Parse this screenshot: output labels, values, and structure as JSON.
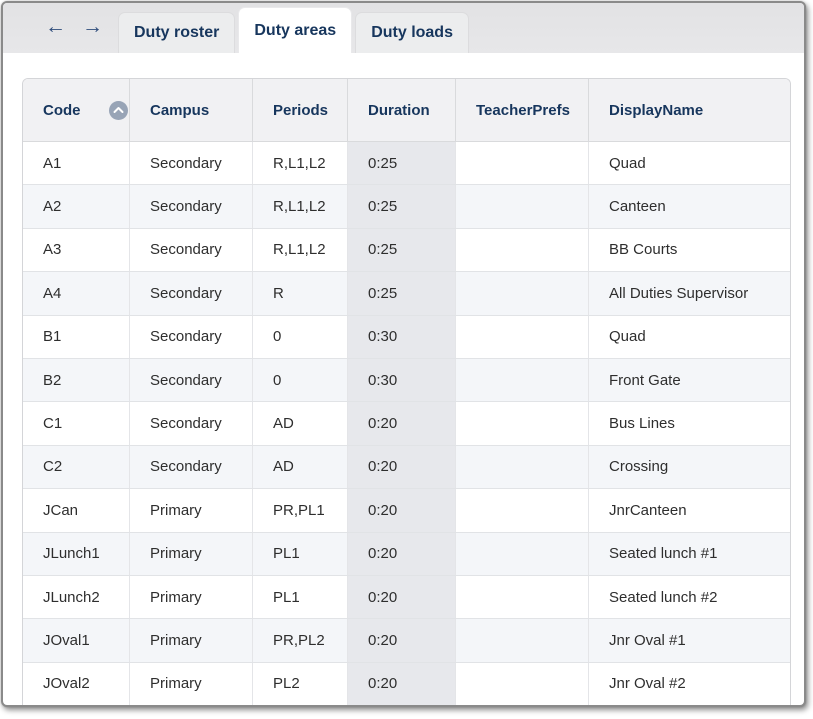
{
  "window": {
    "nav": {
      "back_icon": "←",
      "forward_icon": "→"
    },
    "tabs": [
      {
        "label": "Duty roster",
        "active": false
      },
      {
        "label": "Duty areas",
        "active": true
      },
      {
        "label": "Duty loads",
        "active": false
      }
    ]
  },
  "table": {
    "columns": [
      "Code",
      "Campus",
      "Periods",
      "Duration",
      "TeacherPrefs",
      "DisplayName"
    ],
    "sort": {
      "column": "Code",
      "direction": "ascending"
    },
    "rows": [
      [
        "A1",
        "Secondary",
        "R,L1,L2",
        "0:25",
        "",
        "Quad"
      ],
      [
        "A2",
        "Secondary",
        "R,L1,L2",
        "0:25",
        "",
        "Canteen"
      ],
      [
        "A3",
        "Secondary",
        "R,L1,L2",
        "0:25",
        "",
        "BB Courts"
      ],
      [
        "A4",
        "Secondary",
        "R",
        "0:25",
        "",
        "All Duties Supervisor"
      ],
      [
        "B1",
        "Secondary",
        "0",
        "0:30",
        "",
        "Quad"
      ],
      [
        "B2",
        "Secondary",
        "0",
        "0:30",
        "",
        "Front Gate"
      ],
      [
        "C1",
        "Secondary",
        "AD",
        "0:20",
        "",
        "Bus Lines"
      ],
      [
        "C2",
        "Secondary",
        "AD",
        "0:20",
        "",
        "Crossing"
      ],
      [
        "JCan",
        "Primary",
        "PR,PL1",
        "0:20",
        "",
        "JnrCanteen"
      ],
      [
        "JLunch1",
        "Primary",
        "PL1",
        "0:20",
        "",
        "Seated lunch #1"
      ],
      [
        "JLunch2",
        "Primary",
        "PL1",
        "0:20",
        "",
        "Seated lunch #2"
      ],
      [
        "JOval1",
        "Primary",
        "PR,PL2",
        "0:20",
        "",
        "Jnr Oval #1"
      ],
      [
        "JOval2",
        "Primary",
        "PL2",
        "0:20",
        "",
        "Jnr Oval #2"
      ]
    ]
  },
  "colors": {
    "accent_navy": "#17365d",
    "focus_underline_blue": "#4a90d9",
    "duration_column_bg": "#e7e8ec",
    "alt_row_bg": "#f4f6f9",
    "sort_icon_bg": "#98a4b6"
  }
}
